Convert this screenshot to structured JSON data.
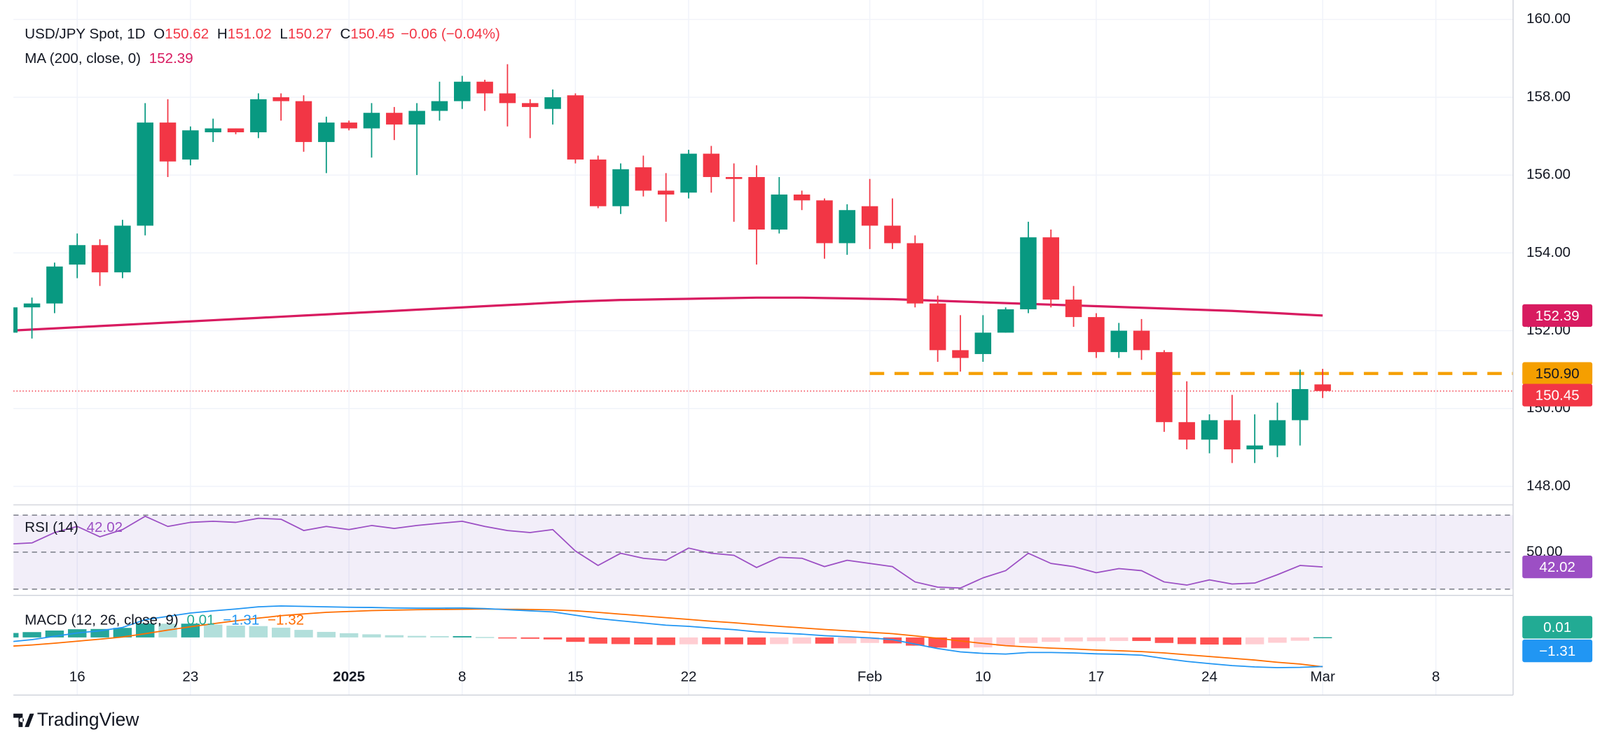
{
  "chart_data": {
    "type": "candlestick",
    "title": "USD/JPY Spot, 1D",
    "ohlc_legend": [
      {
        "key": "O",
        "value": "150.62"
      },
      {
        "key": "H",
        "value": "151.02"
      },
      {
        "key": "L",
        "value": "150.27"
      },
      {
        "key": "C",
        "value": "150.45"
      }
    ],
    "change_label": "−0.06 (−0.04%)",
    "categories": [
      null,
      null,
      null,
      "16",
      null,
      null,
      null,
      null,
      "23",
      null,
      null,
      null,
      null,
      null,
      null,
      "2025",
      null,
      null,
      null,
      null,
      "8",
      null,
      null,
      null,
      null,
      "15",
      null,
      null,
      null,
      null,
      "22",
      null,
      null,
      null,
      null,
      null,
      null,
      null,
      "Feb",
      null,
      null,
      null,
      null,
      "10",
      null,
      null,
      null,
      null,
      "17",
      null,
      null,
      null,
      null,
      "24",
      null,
      null,
      null,
      null,
      "Mar",
      null,
      null,
      null,
      null,
      "8"
    ],
    "bold_category": "2025",
    "ohlc": {
      "up_color": "#089981",
      "down_color": "#f23645",
      "open": [
        151.95,
        152.6,
        152.7,
        153.7,
        154.2,
        153.5,
        154.7,
        157.35,
        156.4,
        157.1,
        157.2,
        157.1,
        158.0,
        157.9,
        156.85,
        157.35,
        157.2,
        157.6,
        157.3,
        157.65,
        157.9,
        158.4,
        158.1,
        157.85,
        157.7,
        158.05,
        156.4,
        155.2,
        156.2,
        155.6,
        155.55,
        156.55,
        155.95,
        155.95,
        154.6,
        155.5,
        155.35,
        154.25,
        155.2,
        154.7,
        154.25,
        152.7,
        151.5,
        151.4,
        151.95,
        152.55,
        154.4,
        152.8,
        152.35,
        151.45,
        152.0,
        151.45,
        149.65,
        149.2,
        149.7,
        148.95,
        149.05,
        149.7,
        150.62,
        null,
        null,
        null,
        null,
        null
      ],
      "high": [
        152.7,
        152.85,
        153.75,
        154.5,
        154.35,
        154.85,
        157.85,
        157.95,
        157.25,
        157.45,
        157.2,
        158.1,
        158.1,
        158.05,
        157.5,
        157.4,
        157.85,
        157.75,
        157.85,
        158.4,
        158.55,
        158.45,
        158.85,
        157.95,
        158.2,
        158.1,
        156.5,
        156.3,
        156.5,
        156.05,
        156.65,
        156.75,
        156.3,
        156.25,
        155.95,
        155.6,
        155.4,
        155.25,
        155.9,
        155.4,
        154.45,
        152.9,
        152.4,
        152.4,
        152.6,
        154.8,
        154.6,
        153.15,
        152.45,
        152.2,
        152.3,
        151.5,
        150.7,
        149.85,
        150.35,
        149.85,
        150.15,
        151.0,
        151.02,
        null,
        null,
        null,
        null,
        null
      ],
      "low": [
        151.9,
        151.8,
        152.45,
        153.35,
        153.15,
        153.35,
        154.45,
        155.95,
        156.25,
        156.85,
        157.05,
        156.95,
        157.4,
        156.6,
        156.05,
        157.15,
        156.45,
        156.9,
        156.0,
        157.4,
        157.7,
        157.65,
        157.25,
        156.95,
        157.3,
        156.3,
        155.15,
        155.0,
        155.45,
        154.8,
        155.4,
        155.55,
        154.8,
        153.7,
        154.5,
        155.1,
        153.85,
        153.95,
        154.1,
        154.1,
        152.6,
        151.2,
        150.95,
        151.2,
        151.95,
        152.45,
        152.6,
        152.1,
        151.3,
        151.3,
        151.25,
        149.4,
        148.95,
        148.85,
        148.6,
        148.6,
        148.75,
        149.05,
        150.27,
        null,
        null,
        null,
        null,
        null
      ],
      "close": [
        152.6,
        152.7,
        153.65,
        154.2,
        153.5,
        154.7,
        157.35,
        156.35,
        157.15,
        157.2,
        157.1,
        157.95,
        157.9,
        156.85,
        157.35,
        157.2,
        157.6,
        157.3,
        157.65,
        157.9,
        158.4,
        158.1,
        157.85,
        157.75,
        158.0,
        156.4,
        155.2,
        156.15,
        155.6,
        155.5,
        156.55,
        155.95,
        155.9,
        154.6,
        155.5,
        155.35,
        154.25,
        155.1,
        154.7,
        154.25,
        152.7,
        151.5,
        151.3,
        151.95,
        152.55,
        154.4,
        152.8,
        152.35,
        151.45,
        152.0,
        151.5,
        149.65,
        149.2,
        149.7,
        148.95,
        149.05,
        149.7,
        150.5,
        150.45,
        null,
        null,
        null,
        null,
        null
      ]
    },
    "ylim": [
      147.55,
      160.5
    ],
    "yticks": [
      {
        "value": 148,
        "label": "148.00"
      },
      {
        "value": 150,
        "label": "150.00"
      },
      {
        "value": 152,
        "label": "152.00"
      },
      {
        "value": 154,
        "label": "154.00"
      },
      {
        "value": 156,
        "label": "156.00"
      },
      {
        "value": 158,
        "label": "158.00"
      },
      {
        "value": 160,
        "label": "160.00"
      }
    ],
    "grid": true,
    "ma": {
      "label": "MA (200, close, 0)",
      "value_label": "152.39",
      "value": 152.39,
      "color": "#d81b60",
      "values": [
        152.0,
        152.03,
        152.06,
        152.09,
        152.12,
        152.15,
        152.18,
        152.21,
        152.24,
        152.27,
        152.3,
        152.33,
        152.36,
        152.39,
        152.42,
        152.45,
        152.48,
        152.51,
        152.54,
        152.57,
        152.6,
        152.63,
        152.66,
        152.69,
        152.72,
        152.75,
        152.77,
        152.79,
        152.8,
        152.81,
        152.82,
        152.83,
        152.84,
        152.85,
        152.85,
        152.85,
        152.84,
        152.83,
        152.82,
        152.81,
        152.79,
        152.77,
        152.75,
        152.73,
        152.71,
        152.69,
        152.67,
        152.65,
        152.63,
        152.61,
        152.59,
        152.57,
        152.55,
        152.53,
        152.51,
        152.48,
        152.45,
        152.42,
        152.39,
        null,
        null,
        null,
        null,
        null
      ]
    },
    "level": {
      "value": 150.9,
      "label": "150.90",
      "color": "#f59f00"
    },
    "last_price": {
      "value": 150.45,
      "label": "150.45",
      "color": "#f23645"
    },
    "rsi": {
      "label": "RSI (14)",
      "value_label": "42.02",
      "value": 42.02,
      "color": "#9c4fc4",
      "ylim": [
        27.2,
        75
      ],
      "yticks": [
        {
          "value": 50,
          "label": "50.00"
        }
      ],
      "bands": [
        30,
        70
      ],
      "values": [
        54.4,
        55.0,
        60.6,
        63.9,
        58.3,
        62.2,
        69.4,
        63.9,
        66.1,
        66.7,
        66.1,
        68.3,
        67.8,
        61.7,
        63.9,
        62.2,
        64.4,
        62.8,
        64.4,
        65.6,
        66.7,
        63.9,
        61.7,
        60.6,
        62.2,
        50.6,
        42.8,
        49.4,
        46.7,
        45.6,
        52.2,
        49.4,
        48.3,
        41.7,
        47.2,
        46.7,
        42.2,
        45.6,
        43.9,
        42.2,
        33.9,
        31.1,
        30.6,
        36.1,
        40.0,
        49.4,
        43.9,
        42.2,
        38.9,
        41.1,
        40.0,
        33.9,
        32.2,
        35.0,
        32.8,
        33.3,
        37.8,
        42.8,
        42.02,
        null,
        null,
        null,
        null,
        null
      ]
    },
    "macd": {
      "label": "MACD (12, 26, close, 9)",
      "ylim": [
        -2.6,
        1.85
      ],
      "histogram": {
        "value_label": "0.01",
        "value": 0.01,
        "color": "#22ab94",
        "values": [
          0.2,
          0.24,
          0.31,
          0.37,
          0.38,
          0.43,
          0.63,
          0.62,
          0.62,
          0.58,
          0.53,
          0.51,
          0.44,
          0.34,
          0.25,
          0.19,
          0.14,
          0.1,
          0.07,
          0.06,
          0.06,
          0.02,
          -0.02,
          -0.06,
          -0.09,
          -0.2,
          -0.28,
          -0.3,
          -0.32,
          -0.34,
          -0.31,
          -0.31,
          -0.31,
          -0.33,
          -0.3,
          -0.28,
          -0.28,
          -0.27,
          -0.25,
          -0.27,
          -0.37,
          -0.46,
          -0.49,
          -0.45,
          -0.38,
          -0.25,
          -0.2,
          -0.18,
          -0.17,
          -0.16,
          -0.16,
          -0.25,
          -0.3,
          -0.32,
          -0.33,
          -0.31,
          -0.24,
          -0.15,
          0.01,
          null,
          null,
          null,
          null,
          null
        ]
      },
      "macd_line": {
        "value_label": "−1.31",
        "value": -1.31,
        "color": "#2196f3",
        "values": [
          -0.2,
          -0.1,
          0.05,
          0.2,
          0.3,
          0.45,
          0.8,
          0.95,
          1.1,
          1.2,
          1.28,
          1.38,
          1.42,
          1.4,
          1.38,
          1.36,
          1.35,
          1.33,
          1.32,
          1.32,
          1.33,
          1.3,
          1.25,
          1.2,
          1.15,
          1.0,
          0.85,
          0.75,
          0.65,
          0.55,
          0.5,
          0.42,
          0.35,
          0.25,
          0.2,
          0.15,
          0.08,
          0.03,
          -0.02,
          -0.1,
          -0.3,
          -0.5,
          -0.65,
          -0.72,
          -0.75,
          -0.68,
          -0.68,
          -0.7,
          -0.74,
          -0.76,
          -0.8,
          -0.95,
          -1.08,
          -1.18,
          -1.27,
          -1.33,
          -1.36,
          -1.35,
          -1.31,
          null,
          null,
          null,
          null,
          null
        ]
      },
      "signal_line": {
        "value_label": "−1.32",
        "color": "#ff6d00",
        "values": [
          -0.4,
          -0.34,
          -0.26,
          -0.17,
          -0.08,
          0.02,
          0.17,
          0.33,
          0.48,
          0.62,
          0.75,
          0.87,
          0.98,
          1.06,
          1.13,
          1.17,
          1.21,
          1.23,
          1.25,
          1.26,
          1.27,
          1.28,
          1.27,
          1.26,
          1.24,
          1.2,
          1.13,
          1.05,
          0.97,
          0.89,
          0.81,
          0.73,
          0.66,
          0.58,
          0.5,
          0.43,
          0.36,
          0.3,
          0.23,
          0.17,
          0.07,
          -0.04,
          -0.16,
          -0.27,
          -0.37,
          -0.43,
          -0.48,
          -0.52,
          -0.57,
          -0.6,
          -0.64,
          -0.7,
          -0.78,
          -0.86,
          -0.94,
          -1.02,
          -1.12,
          -1.2,
          -1.32,
          null,
          null,
          null,
          null,
          null
        ]
      }
    },
    "brand": "TradingView"
  }
}
